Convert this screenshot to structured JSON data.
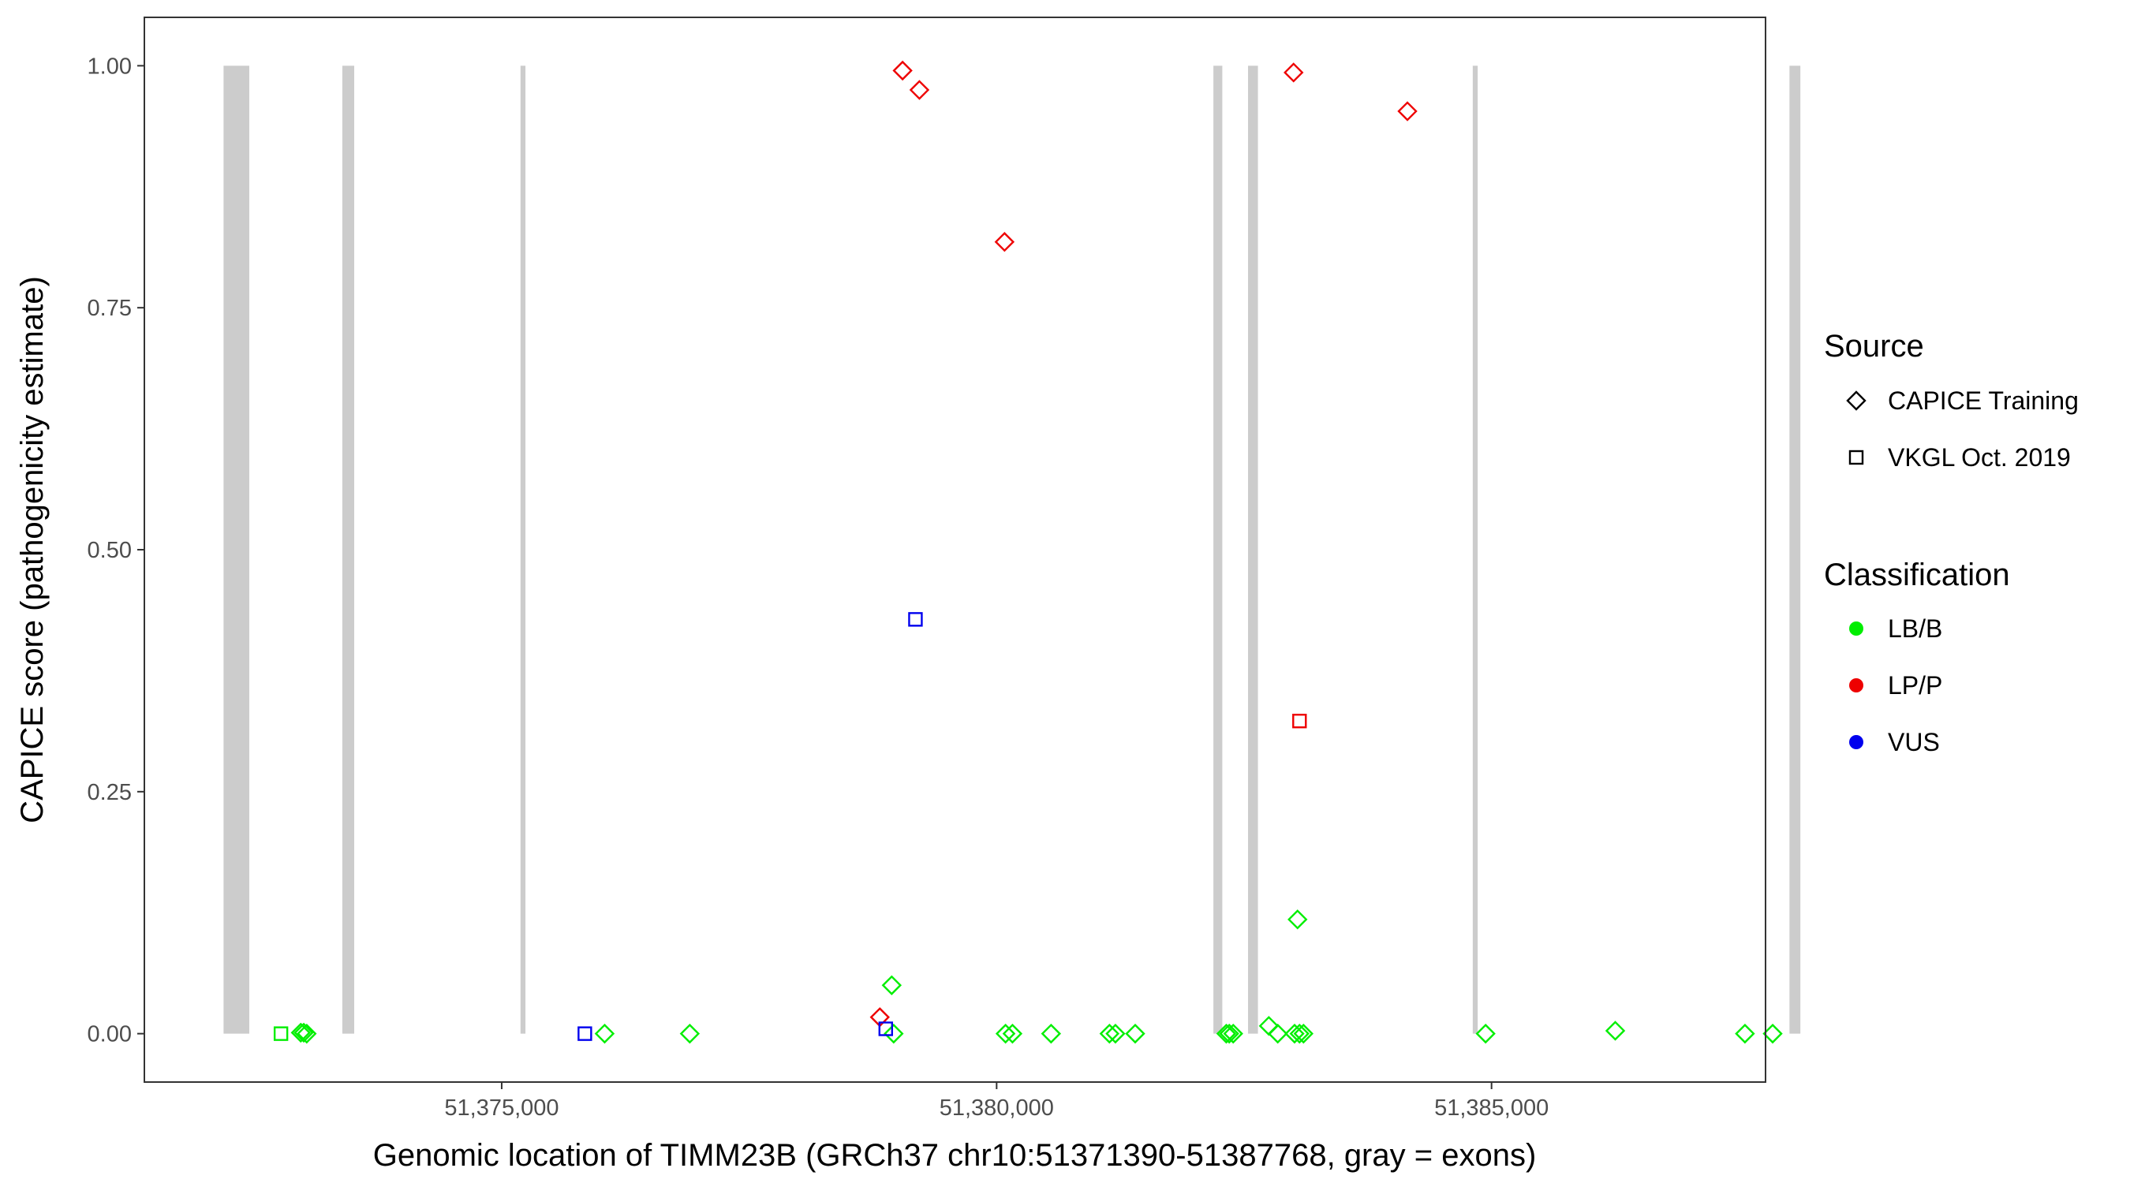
{
  "chart_data": {
    "type": "scatter",
    "xlabel": "Genomic location of TIMM23B (GRCh37 chr10:51371390-51387768, gray = exons)",
    "ylabel": "CAPICE score (pathogenicity estimate)",
    "xlim": [
      51371390,
      51387768
    ],
    "ylim": [
      -0.05,
      1.05
    ],
    "x_ticks": [
      51375000,
      51380000,
      51385000
    ],
    "x_tick_labels": [
      "51,375,000",
      "51,380,000",
      "51,385,000"
    ],
    "y_ticks": [
      0,
      0.25,
      0.5,
      0.75,
      1.0
    ],
    "y_tick_labels": [
      "0.00",
      "0.25",
      "0.50",
      "0.75",
      "1.00"
    ],
    "grid": false,
    "exon_color": "#cccccc",
    "exons": [
      [
        51372190,
        51372450
      ],
      [
        51373390,
        51373510
      ],
      [
        51375190,
        51375240
      ],
      [
        51382190,
        51382280
      ],
      [
        51382540,
        51382640
      ],
      [
        51384810,
        51384860
      ],
      [
        51388010,
        51388120
      ]
    ],
    "legend": {
      "placement": "right",
      "source": {
        "title": "Source",
        "entries": [
          {
            "label": "CAPICE Training",
            "shape": "diamond"
          },
          {
            "label": "VKGL Oct. 2019",
            "shape": "square"
          }
        ]
      },
      "classification": {
        "title": "Classification",
        "entries": [
          {
            "label": "LB/B",
            "color": "#00ee00"
          },
          {
            "label": "LP/P",
            "color": "#ee0000"
          },
          {
            "label": "VUS",
            "color": "#0000ee"
          }
        ]
      }
    },
    "series": [
      {
        "name": "CAPICE Training",
        "shape": "diamond",
        "points": [
          {
            "x": 51379050,
            "y": 0.995,
            "c": "LP/P"
          },
          {
            "x": 51379220,
            "y": 0.975,
            "c": "LP/P"
          },
          {
            "x": 51383000,
            "y": 0.993,
            "c": "LP/P"
          },
          {
            "x": 51384150,
            "y": 0.953,
            "c": "LP/P"
          },
          {
            "x": 51380080,
            "y": 0.818,
            "c": "LP/P"
          },
          {
            "x": 51378820,
            "y": 0.017,
            "c": "LP/P"
          },
          {
            "x": 51378940,
            "y": 0.05,
            "c": "LB/B"
          },
          {
            "x": 51383040,
            "y": 0.118,
            "c": "LB/B"
          },
          {
            "x": 51372970,
            "y": 0.001,
            "c": "LB/B"
          },
          {
            "x": 51373000,
            "y": 0.001,
            "c": "LB/B"
          },
          {
            "x": 51373030,
            "y": 0.0,
            "c": "LB/B"
          },
          {
            "x": 51376040,
            "y": 0.0,
            "c": "LB/B"
          },
          {
            "x": 51376900,
            "y": 0.0,
            "c": "LB/B"
          },
          {
            "x": 51378960,
            "y": 0.0,
            "c": "LB/B"
          },
          {
            "x": 51380090,
            "y": 0.0,
            "c": "LB/B"
          },
          {
            "x": 51380160,
            "y": 0.0,
            "c": "LB/B"
          },
          {
            "x": 51380550,
            "y": 0.0,
            "c": "LB/B"
          },
          {
            "x": 51381140,
            "y": 0.0,
            "c": "LB/B"
          },
          {
            "x": 51381200,
            "y": 0.0,
            "c": "LB/B"
          },
          {
            "x": 51381400,
            "y": 0.0,
            "c": "LB/B"
          },
          {
            "x": 51382320,
            "y": 0.0,
            "c": "LB/B"
          },
          {
            "x": 51382350,
            "y": 0.0,
            "c": "LB/B"
          },
          {
            "x": 51382390,
            "y": 0.0,
            "c": "LB/B"
          },
          {
            "x": 51382750,
            "y": 0.008,
            "c": "LB/B"
          },
          {
            "x": 51382840,
            "y": 0.0,
            "c": "LB/B"
          },
          {
            "x": 51383010,
            "y": 0.0,
            "c": "LB/B"
          },
          {
            "x": 51383060,
            "y": 0.0,
            "c": "LB/B"
          },
          {
            "x": 51383100,
            "y": 0.0,
            "c": "LB/B"
          },
          {
            "x": 51384940,
            "y": 0.0,
            "c": "LB/B"
          },
          {
            "x": 51386250,
            "y": 0.003,
            "c": "LB/B"
          },
          {
            "x": 51387560,
            "y": 0.0,
            "c": "LB/B"
          },
          {
            "x": 51387840,
            "y": 0.0,
            "c": "LB/B"
          }
        ]
      },
      {
        "name": "VKGL Oct. 2019",
        "shape": "square",
        "points": [
          {
            "x": 51379180,
            "y": 0.428,
            "c": "VUS"
          },
          {
            "x": 51383060,
            "y": 0.323,
            "c": "LP/P"
          },
          {
            "x": 51372770,
            "y": 0.0,
            "c": "LB/B"
          },
          {
            "x": 51375840,
            "y": 0.0,
            "c": "VUS"
          },
          {
            "x": 51378880,
            "y": 0.005,
            "c": "VUS"
          }
        ]
      }
    ]
  }
}
